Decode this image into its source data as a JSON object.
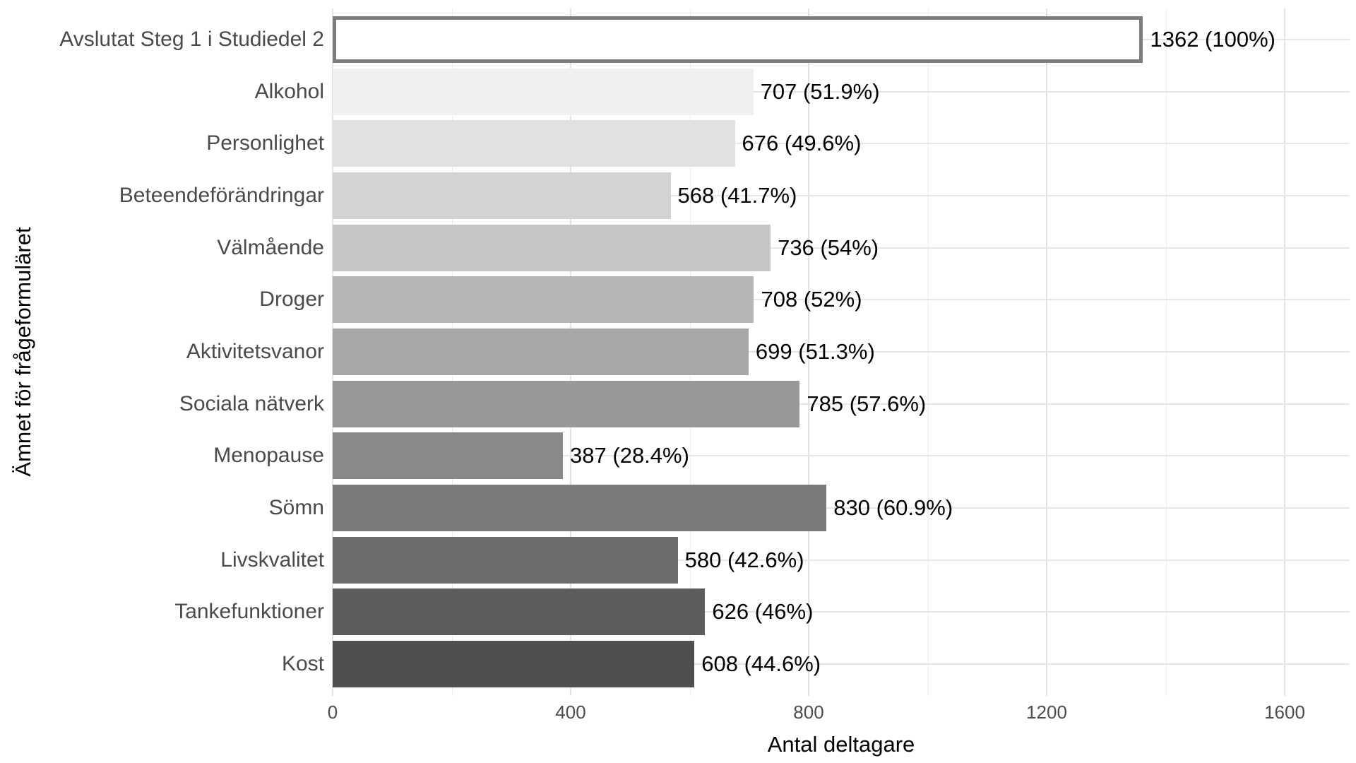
{
  "chart_data": {
    "type": "bar",
    "orientation": "horizontal",
    "title": "",
    "xlabel": "Antal deltagare",
    "ylabel": "Ämnet för frågeformuläret",
    "xlim": [
      0,
      1709
    ],
    "x_major_ticks": [
      0,
      400,
      800,
      1200,
      1600
    ],
    "x_tick_labels": [
      "0",
      "400",
      "800",
      "1200",
      "1600"
    ],
    "x_minor_gridlines": [
      200,
      600,
      1000,
      1400
    ],
    "grid": "on",
    "legend": "none",
    "categories": [
      "Avslutat Steg 1 i Studiedel 2",
      "Alkohol",
      "Personlighet",
      "Beteendeförändringar",
      "Välmående",
      "Droger",
      "Aktivitetsvanor",
      "Sociala nätverk",
      "Menopause",
      "Sömn",
      "Livskvalitet",
      "Tankefunktioner",
      "Kost"
    ],
    "values": [
      1362,
      707,
      676,
      568,
      736,
      708,
      699,
      785,
      387,
      830,
      580,
      626,
      608
    ],
    "percentages": [
      100,
      51.9,
      49.6,
      41.7,
      54,
      52,
      51.3,
      57.6,
      28.4,
      60.9,
      42.6,
      46,
      44.6
    ],
    "value_labels": [
      "1362 (100%)",
      "707 (51.9%)",
      "676 (49.6%)",
      "568 (41.7%)",
      "736 (54%)",
      "708 (52%)",
      "699 (51.3%)",
      "785 (57.6%)",
      "387 (28.4%)",
      "830 (60.9%)",
      "580 (42.6%)",
      "626 (46%)",
      "608 (44.6%)"
    ],
    "bar_colors": [
      "#ffffff",
      "#f0f0f0",
      "#e1e1e1",
      "#d3d3d3",
      "#c5c5c5",
      "#b5b5b5",
      "#a7a7a7",
      "#989898",
      "#898989",
      "#7b7b7b",
      "#6c6c6c",
      "#5d5d5d",
      "#4f4f4f"
    ],
    "highlight_index": 0,
    "colors": {
      "highlight_border": "#7d7d7d",
      "grid_major": "#e3e3e3",
      "grid_minor": "#ededed",
      "axis_text": "#4d4d4d",
      "category_text": "#4a4a4a",
      "value_text": "#000000",
      "background": "#ffffff"
    }
  }
}
